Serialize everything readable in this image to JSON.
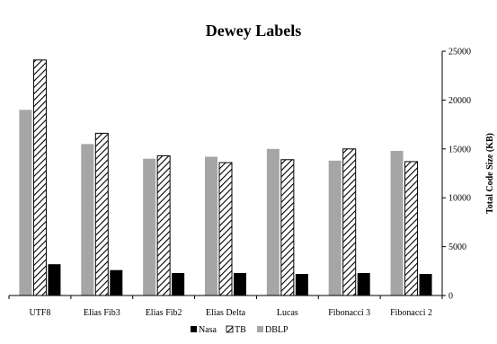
{
  "chart_data": {
    "type": "bar",
    "title": "Dewey Labels",
    "ylabel": "Total Code Size (KB)",
    "xlabel": "",
    "ylim": [
      0,
      25000
    ],
    "yticks": [
      0,
      5000,
      10000,
      15000,
      20000,
      25000
    ],
    "y_axis_side": "right",
    "grid": false,
    "legend_position": "bottom",
    "categories": [
      "UTF8",
      "Elias Fib3",
      "Elias Fib2",
      "Elias Delta",
      "Lucas",
      "Fibonacci 3",
      "Fibonacci 2"
    ],
    "series": [
      {
        "name": "Nasa",
        "style": "solid-black",
        "color": "#000000",
        "values": [
          3200,
          2600,
          2300,
          2300,
          2200,
          2300,
          2200
        ]
      },
      {
        "name": "TB",
        "style": "diagonal-hatch",
        "color": "#000000",
        "values": [
          24100,
          16600,
          14300,
          13600,
          13900,
          15000,
          13700
        ]
      },
      {
        "name": "DBLP",
        "style": "solid-gray",
        "color": "#a6a6a6",
        "values": [
          19000,
          15500,
          14000,
          14200,
          15000,
          13800,
          14800
        ]
      }
    ]
  }
}
